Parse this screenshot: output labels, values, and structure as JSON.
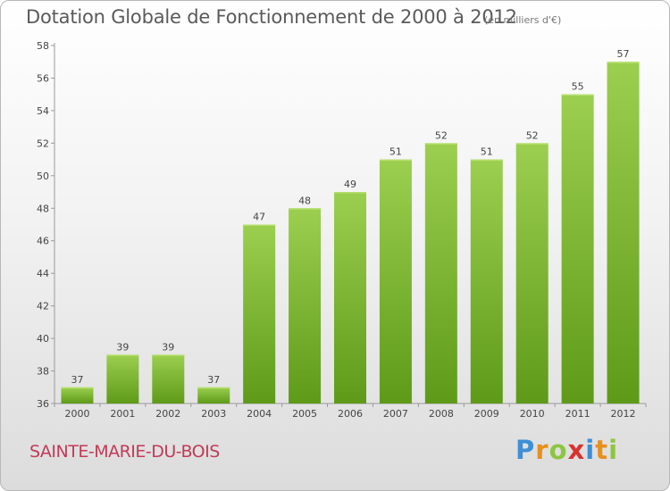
{
  "header": {
    "title": "Dotation Globale de Fonctionnement de 2000 à 2012",
    "unit_note": "(en milliers d'€)"
  },
  "footer": {
    "commune": "SAINTE-MARIE-DU-BOIS",
    "logo_letters": [
      "P",
      "r",
      "o",
      "x",
      "i",
      "t",
      "i"
    ],
    "logo_colors": [
      "#3d8fd6",
      "#e8901c",
      "#8cc63f",
      "#d8322f",
      "#3d8fd6",
      "#e8901c",
      "#8cc63f"
    ]
  },
  "colors": {
    "bar_light": "#9ccf4f",
    "bar_dark": "#5e9a18",
    "axis": "#9a9a9a",
    "text": "#444444"
  },
  "chart_data": {
    "type": "bar",
    "categories": [
      "2000",
      "2001",
      "2002",
      "2003",
      "2004",
      "2005",
      "2006",
      "2007",
      "2008",
      "2009",
      "2010",
      "2011",
      "2012"
    ],
    "values": [
      37,
      39,
      39,
      37,
      47,
      48,
      49,
      51,
      52,
      51,
      52,
      55,
      57
    ],
    "data_labels": [
      "37",
      "39",
      "39",
      "37",
      "47",
      "48",
      "49",
      "51",
      "52",
      "51",
      "52",
      "55",
      "57"
    ],
    "yticks": [
      "36",
      "38",
      "40",
      "42",
      "44",
      "46",
      "48",
      "50",
      "52",
      "54",
      "56",
      "58"
    ],
    "ylim": [
      36,
      58
    ],
    "grid": false
  }
}
